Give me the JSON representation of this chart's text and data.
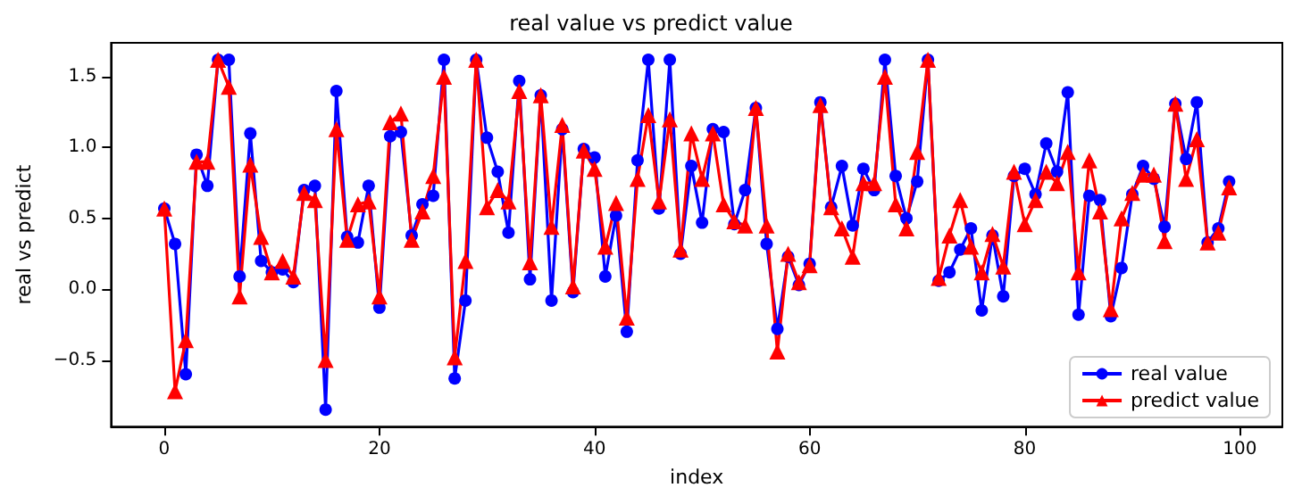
{
  "chart_data": {
    "type": "line",
    "title": "real value vs predict value",
    "xlabel": "index",
    "ylabel": "real vs predict",
    "x": [
      0,
      1,
      2,
      3,
      4,
      5,
      6,
      7,
      8,
      9,
      10,
      11,
      12,
      13,
      14,
      15,
      16,
      17,
      18,
      19,
      20,
      21,
      22,
      23,
      24,
      25,
      26,
      27,
      28,
      29,
      30,
      31,
      32,
      33,
      34,
      35,
      36,
      37,
      38,
      39,
      40,
      41,
      42,
      43,
      44,
      45,
      46,
      47,
      48,
      49,
      50,
      51,
      52,
      53,
      54,
      55,
      56,
      57,
      58,
      59,
      60,
      61,
      62,
      63,
      64,
      65,
      66,
      67,
      68,
      69,
      70,
      71,
      72,
      73,
      74,
      75,
      76,
      77,
      78,
      79,
      80,
      81,
      82,
      83,
      84,
      85,
      86,
      87,
      88,
      89,
      90,
      91,
      92,
      93,
      94,
      95,
      96,
      97,
      98,
      99
    ],
    "series": [
      {
        "name": "real value",
        "color": "#0000ff",
        "marker": "circle",
        "values": [
          0.57,
          0.32,
          -0.6,
          0.95,
          0.73,
          1.62,
          1.62,
          0.09,
          1.1,
          0.2,
          0.12,
          0.14,
          0.05,
          0.7,
          0.73,
          -0.85,
          1.4,
          0.37,
          0.33,
          0.73,
          -0.13,
          1.08,
          1.11,
          0.38,
          0.6,
          0.66,
          1.62,
          -0.63,
          -0.08,
          1.62,
          1.07,
          0.83,
          0.4,
          1.47,
          0.07,
          1.37,
          -0.08,
          1.13,
          -0.02,
          0.99,
          0.93,
          0.09,
          0.52,
          -0.3,
          0.91,
          1.62,
          0.57,
          1.62,
          0.25,
          0.87,
          0.47,
          1.13,
          1.11,
          0.46,
          0.7,
          1.28,
          0.32,
          -0.28,
          0.23,
          0.03,
          0.18,
          1.32,
          0.58,
          0.87,
          0.45,
          0.85,
          0.7,
          1.62,
          0.8,
          0.5,
          0.76,
          1.62,
          0.06,
          0.12,
          0.28,
          0.43,
          -0.15,
          0.38,
          -0.05,
          0.8,
          0.85,
          0.67,
          1.03,
          0.83,
          1.39,
          -0.18,
          0.66,
          0.63,
          -0.19,
          0.15,
          0.67,
          0.87,
          0.78,
          0.44,
          1.31,
          0.92,
          1.32,
          0.33,
          0.43,
          0.76
        ]
      },
      {
        "name": "predict value",
        "color": "#ff0000",
        "marker": "triangle",
        "values": [
          0.57,
          -0.72,
          -0.36,
          0.9,
          0.9,
          1.62,
          1.43,
          -0.05,
          0.88,
          0.37,
          0.12,
          0.2,
          0.09,
          0.68,
          0.63,
          -0.5,
          1.13,
          0.35,
          0.6,
          0.62,
          -0.05,
          1.18,
          1.24,
          0.35,
          0.55,
          0.8,
          1.5,
          -0.48,
          0.2,
          1.62,
          0.58,
          0.7,
          0.62,
          1.4,
          0.19,
          1.37,
          0.44,
          1.16,
          0.02,
          0.98,
          0.85,
          0.3,
          0.61,
          -0.2,
          0.78,
          1.23,
          0.62,
          1.2,
          0.28,
          1.1,
          0.78,
          1.1,
          0.6,
          0.48,
          0.45,
          1.28,
          0.45,
          -0.44,
          0.25,
          0.05,
          0.17,
          1.3,
          0.58,
          0.43,
          0.23,
          0.75,
          0.75,
          1.5,
          0.6,
          0.43,
          0.97,
          1.62,
          0.08,
          0.38,
          0.63,
          0.3,
          0.12,
          0.39,
          0.16,
          0.83,
          0.46,
          0.63,
          0.83,
          0.75,
          0.97,
          0.12,
          0.91,
          0.55,
          -0.14,
          0.5,
          0.68,
          0.81,
          0.81,
          0.34,
          1.31,
          0.78,
          1.06,
          0.33,
          0.4,
          0.72
        ]
      }
    ],
    "xlim": [
      -4.95,
      103.95
    ],
    "xticks": [
      0,
      20,
      40,
      60,
      80,
      100
    ],
    "ylim": [
      -0.97,
      1.74
    ],
    "yticks": [
      {
        "value": -0.5,
        "label": "−0.5"
      },
      {
        "value": 0,
        "label": "0.0"
      },
      {
        "value": 0.5,
        "label": "0.5"
      },
      {
        "value": 1,
        "label": "1.0"
      },
      {
        "value": 1.5,
        "label": "1.5"
      }
    ],
    "legend": "bottom right",
    "grid": false
  }
}
